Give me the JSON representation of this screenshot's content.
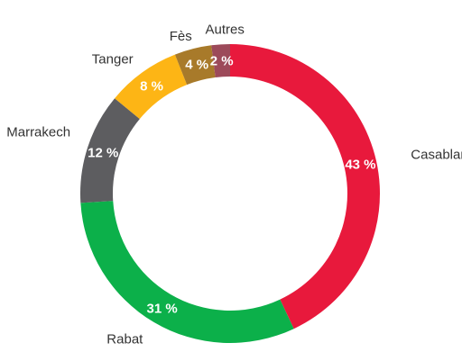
{
  "chart_data": {
    "type": "pie",
    "variant": "donut",
    "title": "",
    "categories": [
      "Casablanca",
      "Rabat",
      "Marrakech",
      "Tanger",
      "Fès",
      "Autres"
    ],
    "values": [
      43,
      31,
      12,
      8,
      4,
      2
    ],
    "value_labels": [
      "43 %",
      "31 %",
      "12 %",
      "8 %",
      "4 %",
      "2 %"
    ],
    "colors": [
      "#e8193c",
      "#0cb04a",
      "#5d5d60",
      "#fdb515",
      "#a87a2a",
      "#9c4a5a"
    ],
    "start": "top, clockwise",
    "legend": "none (slice labels outside ring)"
  }
}
